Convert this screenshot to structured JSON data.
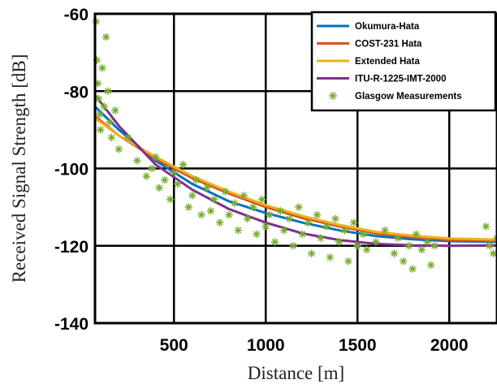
{
  "chart_data": {
    "type": "line",
    "title": "",
    "xlabel": "Distance [m]",
    "ylabel": "Received Signal Strength [dB]",
    "xlim": [
      70,
      2260
    ],
    "ylim": [
      -140,
      -60
    ],
    "xticks": [
      500,
      1000,
      1500,
      2000
    ],
    "yticks": [
      -60,
      -80,
      -100,
      -120,
      -140
    ],
    "grid": true,
    "legend_position": "top-right",
    "series": [
      {
        "name": "Okumura-Hata",
        "color": "#0072BD",
        "x": [
          70,
          200,
          400,
          600,
          800,
          1000,
          1200,
          1400,
          1600,
          1800,
          2000,
          2260
        ],
        "y": [
          -84,
          -90,
          -98,
          -104,
          -108.5,
          -111.5,
          -114,
          -116,
          -117.5,
          -118.3,
          -118.8,
          -119
        ]
      },
      {
        "name": "COST-231 Hata",
        "color": "#D95319",
        "x": [
          70,
          200,
          400,
          600,
          800,
          1000,
          1200,
          1400,
          1600,
          1800,
          2000,
          2260
        ],
        "y": [
          -86.5,
          -91.5,
          -97.5,
          -102.5,
          -106.5,
          -110,
          -112.8,
          -115,
          -116.8,
          -117.8,
          -118.5,
          -118.8
        ]
      },
      {
        "name": "Extended Hata",
        "color": "#EDB120",
        "x": [
          70,
          200,
          400,
          600,
          800,
          1000,
          1200,
          1400,
          1600,
          1800,
          2000,
          2260
        ],
        "y": [
          -87,
          -91.5,
          -97,
          -102,
          -106,
          -109.5,
          -112.3,
          -114.6,
          -116.4,
          -117.4,
          -118.1,
          -118.4
        ]
      },
      {
        "name": "ITU-R-1225-IMT-2000",
        "color": "#7E2F8E",
        "x": [
          70,
          200,
          400,
          600,
          800,
          1000,
          1200,
          1400,
          1600,
          1800,
          2000,
          2260
        ],
        "y": [
          -81,
          -89,
          -99,
          -105.5,
          -110.5,
          -114,
          -116.8,
          -118.5,
          -119.5,
          -119.9,
          -120,
          -119.9
        ]
      },
      {
        "name": "Glasgow Measurements",
        "color": "#77AC30",
        "marker": "asterisk",
        "x": [
          75,
          80,
          85,
          90,
          95,
          100,
          110,
          120,
          130,
          140,
          150,
          160,
          180,
          200,
          250,
          300,
          350,
          380,
          400,
          420,
          450,
          480,
          500,
          520,
          550,
          580,
          600,
          620,
          650,
          680,
          700,
          720,
          750,
          780,
          800,
          830,
          850,
          880,
          900,
          930,
          950,
          980,
          1000,
          1020,
          1050,
          1080,
          1100,
          1130,
          1150,
          1180,
          1200,
          1230,
          1250,
          1280,
          1300,
          1330,
          1350,
          1380,
          1400,
          1430,
          1450,
          1480,
          1500,
          1530,
          1550,
          1600,
          1650,
          1700,
          1720,
          1750,
          1780,
          1800,
          1820,
          1850,
          1880,
          1900,
          1920,
          2200,
          2220,
          2240,
          2260
        ],
        "y": [
          -62,
          -72,
          -78,
          -82,
          -86,
          -90,
          -74,
          -84,
          -66,
          -80,
          -88,
          -92,
          -85,
          -95,
          -92,
          -98,
          -102,
          -100,
          -97,
          -105,
          -103,
          -108,
          -101,
          -104,
          -99,
          -110,
          -107,
          -103,
          -112,
          -105,
          -111,
          -108,
          -114,
          -106,
          -112,
          -109,
          -116,
          -107,
          -113,
          -110,
          -117,
          -108,
          -115,
          -112,
          -119,
          -111,
          -116,
          -113,
          -120,
          -110,
          -117,
          -114,
          -122,
          -112,
          -118,
          -115,
          -123,
          -113,
          -119,
          -116,
          -124,
          -114,
          -120,
          -117,
          -121,
          -119,
          -116,
          -122,
          -118,
          -124,
          -120,
          -126,
          -117,
          -121,
          -119,
          -125,
          -120,
          -115,
          -120,
          -122,
          -118
        ]
      }
    ]
  }
}
